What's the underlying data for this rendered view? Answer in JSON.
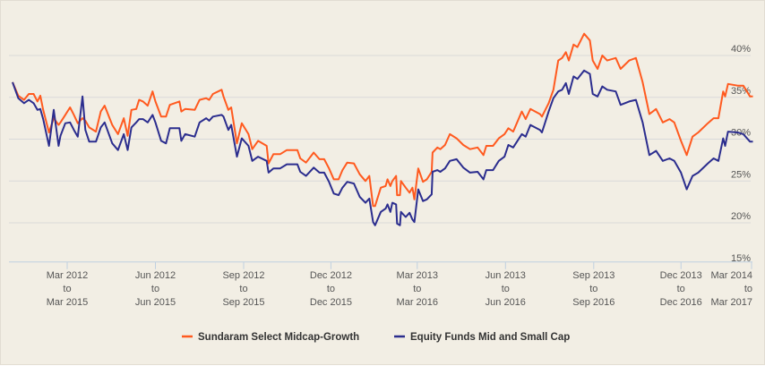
{
  "chart_data": {
    "type": "line",
    "title": "",
    "xlabel": "",
    "ylabel": "",
    "ylim": [
      15,
      42.6
    ],
    "y_ticks": [
      "15%",
      "20%",
      "25%",
      "30%",
      "35%",
      "40%"
    ],
    "y_tick_values": [
      15,
      20,
      25,
      30,
      35,
      40
    ],
    "grid": true,
    "legend_position": "bottom",
    "x_ticks": [
      {
        "date": "2012-03-01",
        "lines": [
          "Mar 2012",
          "to",
          "Mar 2015"
        ]
      },
      {
        "date": "2012-06-01",
        "lines": [
          "Jun 2012",
          "to",
          "Jun 2015"
        ]
      },
      {
        "date": "2012-09-01",
        "lines": [
          "Sep 2012",
          "to",
          "Sep 2015"
        ]
      },
      {
        "date": "2012-12-01",
        "lines": [
          "Dec 2012",
          "to",
          "Dec 2015"
        ]
      },
      {
        "date": "2013-03-01",
        "lines": [
          "Mar 2013",
          "to",
          "Mar 2016"
        ]
      },
      {
        "date": "2013-06-01",
        "lines": [
          "Jun 2013",
          "to",
          "Jun 2016"
        ]
      },
      {
        "date": "2013-09-01",
        "lines": [
          "Sep 2013",
          "to",
          "Sep 2016"
        ]
      },
      {
        "date": "2013-12-01",
        "lines": [
          "Dec 2013",
          "to",
          "Dec 2016"
        ]
      },
      {
        "date": "2014-03-01",
        "lines": [
          "Mar 2014",
          "to",
          "Mar 2017"
        ]
      }
    ],
    "x": [
      "2012-01-04",
      "2012-01-10",
      "2012-01-16",
      "2012-01-21",
      "2012-01-26",
      "2012-01-30",
      "2012-02-02",
      "2012-02-05",
      "2012-02-11",
      "2012-02-16",
      "2012-02-21",
      "2012-02-23",
      "2012-02-28",
      "2012-03-04",
      "2012-03-08",
      "2012-03-12",
      "2012-03-17",
      "2012-03-20",
      "2012-03-24",
      "2012-03-31",
      "2012-04-05",
      "2012-04-09",
      "2012-04-17",
      "2012-04-23",
      "2012-04-29",
      "2012-05-03",
      "2012-05-07",
      "2012-05-12",
      "2012-05-15",
      "2012-05-19",
      "2012-05-24",
      "2012-05-29",
      "2012-06-01",
      "2012-06-07",
      "2012-06-12",
      "2012-06-16",
      "2012-06-26",
      "2012-06-28",
      "2012-07-02",
      "2012-07-12",
      "2012-07-17",
      "2012-07-24",
      "2012-07-27",
      "2012-07-31",
      "2012-08-09",
      "2012-08-11",
      "2012-08-16",
      "2012-08-19",
      "2012-08-25",
      "2012-08-30",
      "2012-09-06",
      "2012-09-10",
      "2012-09-16",
      "2012-09-25",
      "2012-09-27",
      "2012-10-02",
      "2012-10-09",
      "2012-10-16",
      "2012-10-27",
      "2012-10-30",
      "2012-11-05",
      "2012-11-13",
      "2012-11-19",
      "2012-11-24",
      "2012-11-29",
      "2012-12-04",
      "2012-12-09",
      "2012-12-13",
      "2012-12-18",
      "2012-12-25",
      "2012-12-31",
      "2013-01-06",
      "2013-01-10",
      "2013-01-14",
      "2013-01-16",
      "2013-01-22",
      "2013-01-27",
      "2013-01-29",
      "2013-02-01",
      "2013-02-03",
      "2013-02-07",
      "2013-02-08",
      "2013-02-11",
      "2013-02-12",
      "2013-02-17",
      "2013-02-21",
      "2013-02-24",
      "2013-02-26",
      "2013-03-02",
      "2013-03-07",
      "2013-03-11",
      "2013-03-16",
      "2013-03-17",
      "2013-03-22",
      "2013-03-25",
      "2013-03-30",
      "2013-04-04",
      "2013-04-11",
      "2013-04-18",
      "2013-04-25",
      "2013-05-03",
      "2013-05-09",
      "2013-05-12",
      "2013-05-19",
      "2013-05-25",
      "2013-05-31",
      "2013-06-04",
      "2013-06-09",
      "2013-06-18",
      "2013-06-22",
      "2013-06-27",
      "2013-07-07",
      "2013-07-09",
      "2013-07-16",
      "2013-07-21",
      "2013-07-26",
      "2013-07-30",
      "2013-08-03",
      "2013-08-06",
      "2013-08-11",
      "2013-08-15",
      "2013-08-22",
      "2013-08-28",
      "2013-08-31",
      "2013-09-05",
      "2013-09-10",
      "2013-09-15",
      "2013-09-24",
      "2013-09-29",
      "2013-10-08",
      "2013-10-15",
      "2013-10-22",
      "2013-10-29",
      "2013-11-05",
      "2013-11-12",
      "2013-11-19",
      "2013-11-24",
      "2013-12-01",
      "2013-12-07",
      "2013-12-13",
      "2013-12-19",
      "2013-12-29",
      "2014-01-04",
      "2014-01-09",
      "2014-01-14",
      "2014-01-16",
      "2014-01-19",
      "2014-01-29",
      "2014-02-04",
      "2014-02-11",
      "2014-02-14"
    ],
    "series": [
      {
        "name": "Sundaram Select Midcap-Growth",
        "color": "#ff5a1f",
        "values": [
          36.8,
          35.2,
          34.7,
          35.4,
          35.4,
          34.5,
          35.2,
          33.5,
          30.8,
          32.5,
          31.7,
          32.0,
          32.9,
          33.8,
          32.9,
          31.9,
          32.5,
          32.2,
          31.4,
          30.9,
          33.3,
          34.0,
          31.7,
          30.6,
          32.5,
          30.4,
          33.5,
          33.6,
          34.7,
          34.5,
          34.0,
          35.7,
          34.5,
          32.7,
          32.7,
          34.1,
          34.5,
          33.3,
          33.6,
          33.5,
          34.7,
          34.9,
          34.7,
          35.4,
          35.9,
          35.1,
          33.5,
          33.8,
          29.5,
          31.9,
          30.6,
          28.8,
          29.8,
          29.2,
          27.1,
          28.2,
          28.2,
          28.7,
          28.7,
          27.7,
          27.2,
          28.4,
          27.6,
          27.6,
          26.5,
          25.2,
          25.2,
          26.3,
          27.2,
          27.1,
          25.8,
          25.0,
          25.6,
          22.0,
          22.0,
          24.2,
          24.4,
          25.2,
          24.4,
          25.0,
          25.6,
          23.3,
          23.3,
          25.0,
          24.2,
          23.6,
          24.2,
          22.8,
          26.5,
          24.9,
          25.2,
          26.1,
          28.4,
          29.0,
          28.8,
          29.3,
          30.6,
          30.1,
          29.3,
          28.8,
          29.0,
          28.1,
          29.2,
          29.2,
          30.1,
          30.6,
          31.3,
          30.9,
          33.3,
          32.4,
          33.6,
          33.0,
          32.7,
          34.3,
          35.9,
          39.4,
          39.7,
          40.4,
          39.4,
          41.3,
          41.0,
          42.6,
          41.8,
          39.4,
          38.4,
          40.0,
          39.4,
          39.7,
          38.4,
          39.4,
          39.7,
          36.8,
          33.0,
          33.6,
          32.0,
          32.4,
          32.0,
          29.8,
          28.1,
          30.3,
          30.8,
          31.9,
          32.5,
          32.5,
          35.7,
          35.1,
          36.6,
          36.4,
          36.4,
          35.1,
          35.1
        ]
      },
      {
        "name": "Equity Funds Mid and Small Cap",
        "color": "#2b2d8e",
        "values": [
          36.8,
          34.9,
          34.3,
          34.7,
          34.3,
          33.5,
          33.6,
          32.4,
          29.2,
          33.5,
          29.2,
          30.4,
          31.9,
          32.0,
          31.1,
          30.3,
          35.1,
          31.1,
          29.7,
          29.7,
          31.4,
          32.0,
          29.5,
          28.7,
          30.6,
          28.7,
          31.4,
          32.0,
          32.4,
          32.4,
          32.0,
          32.9,
          32.0,
          29.8,
          29.5,
          31.3,
          31.3,
          29.8,
          30.6,
          30.3,
          32.0,
          32.5,
          32.2,
          32.7,
          32.9,
          32.7,
          31.1,
          31.7,
          27.9,
          30.1,
          29.2,
          27.4,
          27.9,
          27.4,
          26.0,
          26.5,
          26.5,
          27.0,
          27.0,
          26.1,
          25.6,
          26.6,
          26.0,
          26.0,
          24.9,
          23.5,
          23.3,
          24.2,
          24.9,
          24.7,
          23.1,
          22.4,
          22.9,
          20.1,
          19.7,
          21.3,
          21.7,
          22.2,
          21.3,
          22.4,
          22.2,
          19.9,
          19.7,
          21.3,
          20.7,
          21.2,
          20.4,
          20.1,
          24.0,
          22.6,
          22.8,
          23.4,
          26.1,
          26.3,
          26.1,
          26.5,
          27.4,
          27.6,
          26.6,
          26.0,
          26.1,
          25.2,
          26.3,
          26.3,
          27.4,
          27.9,
          29.3,
          29.0,
          30.6,
          30.3,
          31.7,
          31.1,
          30.8,
          33.3,
          34.9,
          35.7,
          35.9,
          36.7,
          35.4,
          37.5,
          37.2,
          38.2,
          37.8,
          35.4,
          35.1,
          36.3,
          35.9,
          35.7,
          34.1,
          34.5,
          34.7,
          32.0,
          28.1,
          28.6,
          27.4,
          27.7,
          27.4,
          26.0,
          24.0,
          25.6,
          26.0,
          27.1,
          27.7,
          27.4,
          30.1,
          29.2,
          30.9,
          30.8,
          30.6,
          29.7,
          29.7
        ]
      }
    ],
    "colors": {
      "background": "#f2eee4",
      "grid": "#d9d9d9",
      "axis": "#c0d0e0",
      "text": "#555555"
    }
  }
}
